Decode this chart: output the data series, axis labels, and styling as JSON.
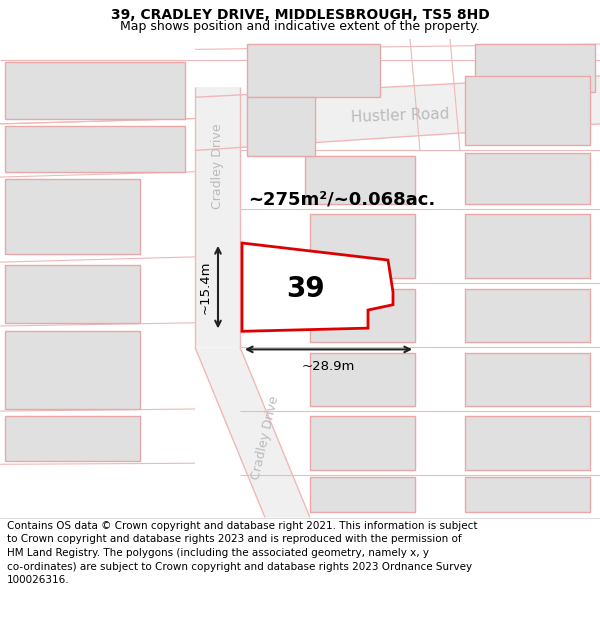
{
  "title": "39, CRADLEY DRIVE, MIDDLESBROUGH, TS5 8HD",
  "subtitle": "Map shows position and indicative extent of the property.",
  "footer_line1": "Contains OS data © Crown copyright and database right 2021. This information is subject",
  "footer_line2": "to Crown copyright and database rights 2023 and is reproduced with the permission of",
  "footer_line3": "HM Land Registry. The polygons (including the associated geometry, namely x, y",
  "footer_line4": "co-ordinates) are subject to Crown copyright and database rights 2023 Ordnance Survey",
  "footer_line5": "100026316.",
  "map_bg": "#f8f8f8",
  "road_bg": "#f0f0f0",
  "road_line_color": "#f0b8b8",
  "building_fill": "#e0e0e0",
  "building_edge": "#e8a8a8",
  "plot_edge_color": "#dd0000",
  "dim_color": "#222222",
  "road_text_color": "#bbbbbb",
  "street1": "Hustler Road",
  "street2_top": "Cradley Drive",
  "street2_bot": "Cradley Drive",
  "property_num": "39",
  "area_text": "~275m²/~0.068ac.",
  "width_label": "~28.9m",
  "height_label": "~15.4m",
  "title_fontsize": 10,
  "subtitle_fontsize": 9,
  "footer_fontsize": 7.5,
  "street_fontsize": 11,
  "area_fontsize": 13,
  "propnum_fontsize": 20,
  "dim_fontsize": 9.5
}
